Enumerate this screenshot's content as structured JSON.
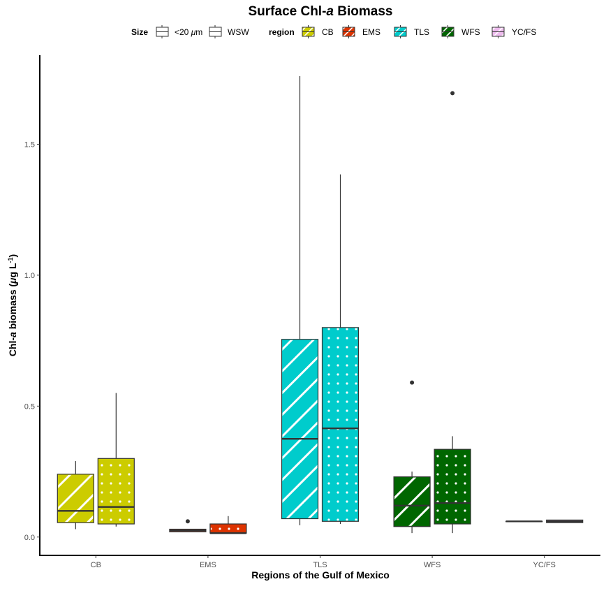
{
  "chart_data": {
    "type": "box",
    "title": {
      "pre": "Surface Chl-",
      "italic": "a",
      "post": " Biomass"
    },
    "xlabel": "Regions of the Gulf of Mexico",
    "ylabel": {
      "pre": "Chl-",
      "italic_a": "a",
      "mid": " biomass (",
      "mu": "μ",
      "unit": "g L",
      "sup": "-1",
      "close": ")"
    },
    "ylim": [
      -0.07,
      1.84
    ],
    "yticks": [
      0.0,
      0.5,
      1.0,
      1.5
    ],
    "ytick_labels": [
      "0.0",
      "0.5",
      "1.0",
      "1.5"
    ],
    "categories": [
      "CB",
      "EMS",
      "TLS",
      "WFS",
      "YC/FS"
    ],
    "legend": {
      "position": "top",
      "size_title": "Size",
      "size_items": [
        {
          "label_pre": "<20 ",
          "label_mu": "μ",
          "label_post": "m",
          "pattern": "stripe"
        },
        {
          "label": "WSW",
          "pattern": "dots"
        }
      ],
      "region_title": "region",
      "region_items": [
        "CB",
        "EMS",
        "TLS",
        "WFS",
        "YC/FS"
      ]
    },
    "colors": {
      "CB": "#cccc00",
      "EMS": "#dd3300",
      "TLS": "#00cccc",
      "WFS": "#006600",
      "YC/FS": "#eebbee"
    },
    "series": [
      {
        "name": "<20 μm",
        "pattern": "stripe",
        "boxes": [
          {
            "category": "CB",
            "min": 0.03,
            "q1": 0.055,
            "median": 0.1,
            "q3": 0.24,
            "max": 0.29,
            "outliers": []
          },
          {
            "category": "EMS",
            "min": 0.02,
            "q1": 0.02,
            "median": 0.025,
            "q3": 0.03,
            "max": 0.03,
            "outliers": [
              0.06
            ]
          },
          {
            "category": "TLS",
            "min": 0.045,
            "q1": 0.07,
            "median": 0.375,
            "q3": 0.755,
            "max": 1.76,
            "outliers": []
          },
          {
            "category": "WFS",
            "min": 0.015,
            "q1": 0.04,
            "median": 0.12,
            "q3": 0.23,
            "max": 0.25,
            "outliers": [
              0.59
            ]
          },
          {
            "category": "YC/FS",
            "min": 0.06,
            "q1": 0.06,
            "median": 0.06,
            "q3": 0.06,
            "max": 0.06,
            "outliers": []
          }
        ]
      },
      {
        "name": "WSW",
        "pattern": "dots",
        "boxes": [
          {
            "category": "CB",
            "min": 0.04,
            "q1": 0.05,
            "median": 0.115,
            "q3": 0.3,
            "max": 0.55,
            "outliers": []
          },
          {
            "category": "EMS",
            "min": 0.015,
            "q1": 0.015,
            "median": 0.015,
            "q3": 0.05,
            "max": 0.08,
            "outliers": []
          },
          {
            "category": "TLS",
            "min": 0.05,
            "q1": 0.06,
            "median": 0.415,
            "q3": 0.8,
            "max": 1.385,
            "outliers": []
          },
          {
            "category": "WFS",
            "min": 0.015,
            "q1": 0.05,
            "median": 0.13,
            "q3": 0.335,
            "max": 0.385,
            "outliers": [
              1.695
            ]
          },
          {
            "category": "YC/FS",
            "min": 0.055,
            "q1": 0.055,
            "median": 0.06,
            "q3": 0.065,
            "max": 0.065,
            "outliers": []
          }
        ]
      }
    ]
  }
}
